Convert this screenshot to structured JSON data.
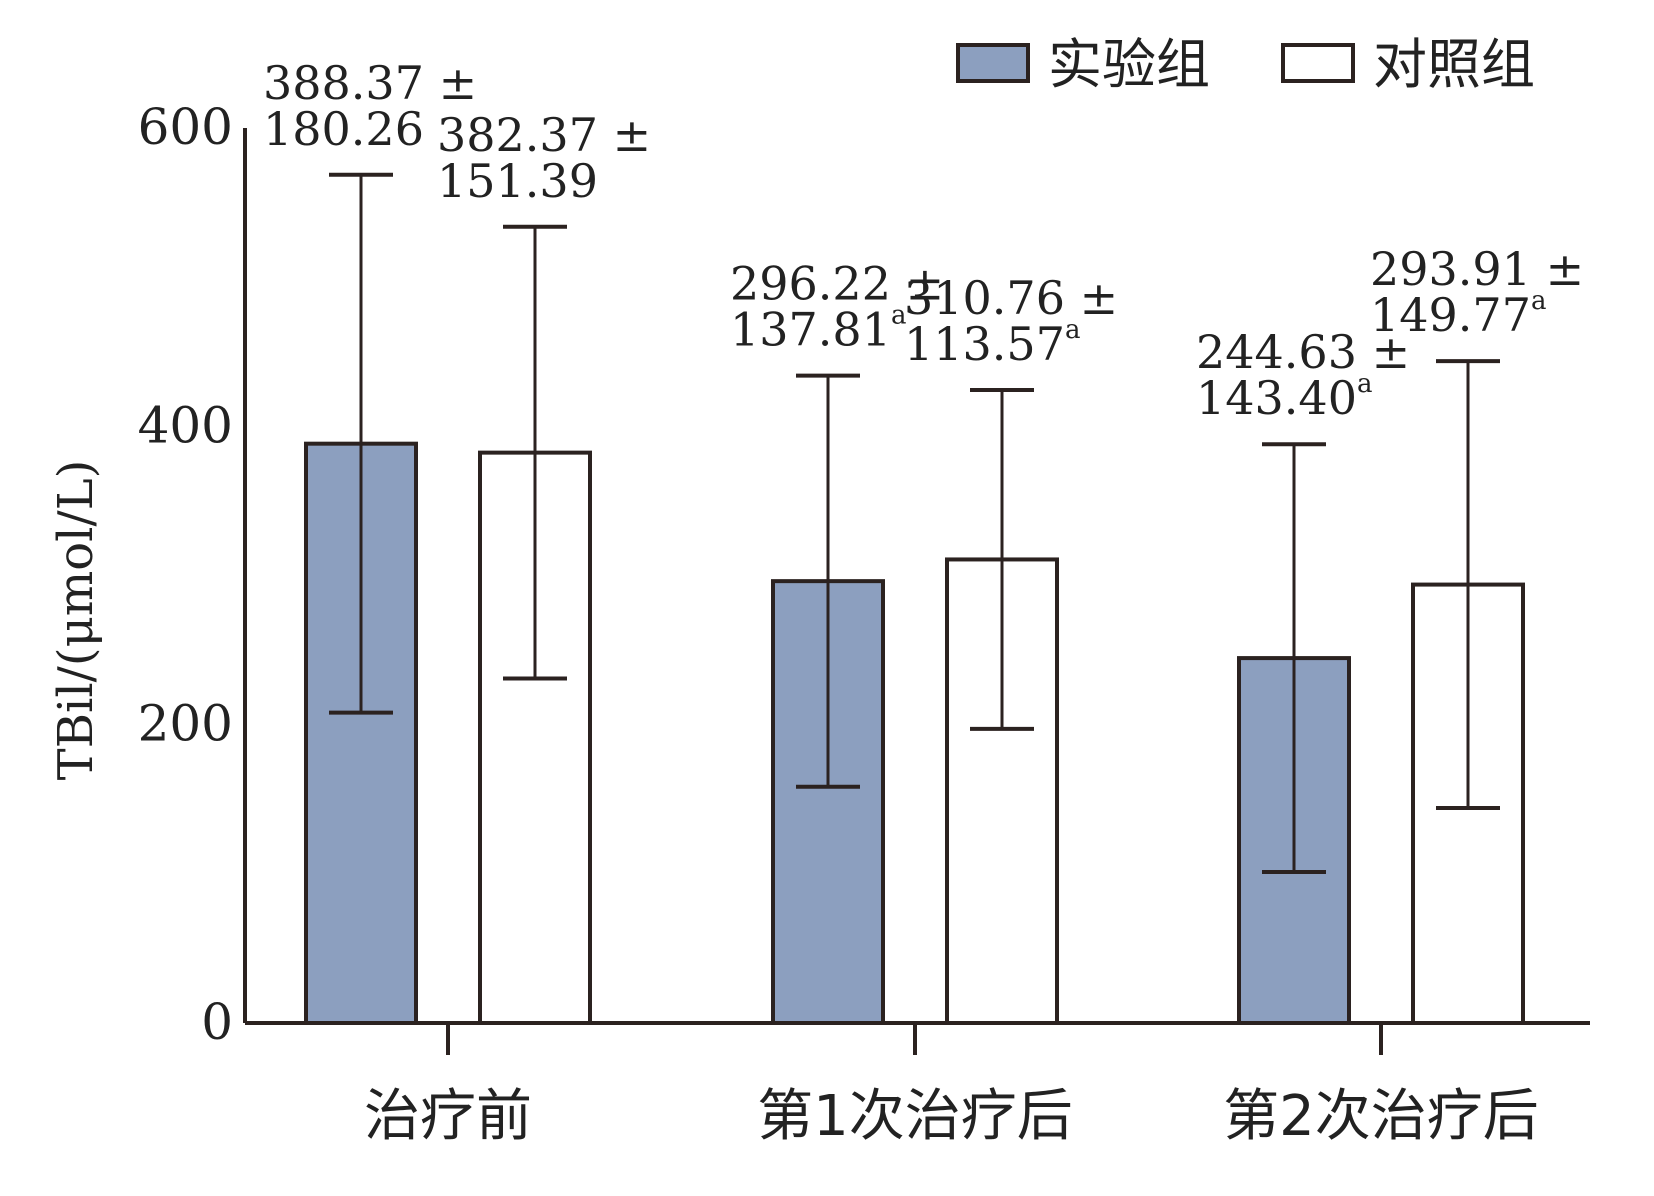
{
  "chart_data": {
    "type": "bar",
    "ylabel": "TBil/(μmol/L)",
    "ylim": [
      0,
      600
    ],
    "yticks": [
      0,
      200,
      400,
      600
    ],
    "categories": [
      "治疗前",
      "第1次治疗后",
      "第2次治疗后"
    ],
    "series": [
      {
        "name": "实验组",
        "color": "#8c9fbf",
        "values": [
          388.37,
          296.22,
          244.63
        ],
        "errors": [
          180.26,
          137.81,
          143.4
        ],
        "labels_line1": [
          "388.37 ±",
          "296.22 ±",
          "244.63 ±"
        ],
        "labels_line2": [
          "180.26",
          "137.81",
          "143.40"
        ],
        "labels_sup": [
          "",
          "a",
          "a"
        ]
      },
      {
        "name": "对照组",
        "color": "#ffffff",
        "values": [
          382.37,
          310.76,
          293.91
        ],
        "errors": [
          151.39,
          113.57,
          149.77
        ],
        "labels_line1": [
          "382.37 ±",
          "310.76 ±",
          "293.91 ±"
        ],
        "labels_line2": [
          "151.39",
          "113.57",
          "149.77"
        ],
        "labels_sup": [
          "",
          "a",
          "a"
        ]
      }
    ],
    "legend_position": "top-right",
    "grid": false
  }
}
